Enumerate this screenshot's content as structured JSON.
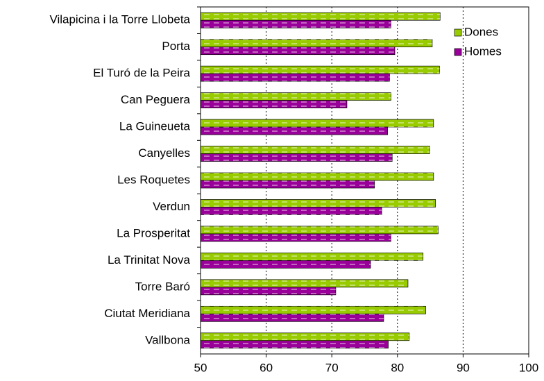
{
  "chart_data": {
    "type": "barh",
    "categories": [
      "Vilapicina i la Torre Llobeta",
      "Porta",
      "El Turó de la Peira",
      "Can Peguera",
      "La Guineueta",
      "Canyelles",
      "Les Roquetes",
      "Verdun",
      "La Prosperitat",
      "La Trinitat Nova",
      "Torre Baró",
      "Ciutat Meridiana",
      "Vallbona"
    ],
    "series": [
      {
        "name": "Dones",
        "color": "#99cc00",
        "values": [
          86.5,
          85.3,
          86.4,
          79.0,
          85.5,
          84.9,
          85.5,
          85.8,
          86.2,
          83.9,
          81.6,
          84.3,
          81.8
        ]
      },
      {
        "name": "Homes",
        "color": "#990099",
        "values": [
          79.0,
          79.6,
          78.8,
          72.3,
          78.5,
          79.2,
          76.5,
          77.6,
          79.0,
          75.9,
          70.6,
          77.9,
          78.6
        ]
      }
    ],
    "xlim": [
      50,
      100
    ],
    "xticks": [
      50,
      60,
      70,
      80,
      90,
      100
    ],
    "grid": true,
    "legend": "upper right"
  }
}
